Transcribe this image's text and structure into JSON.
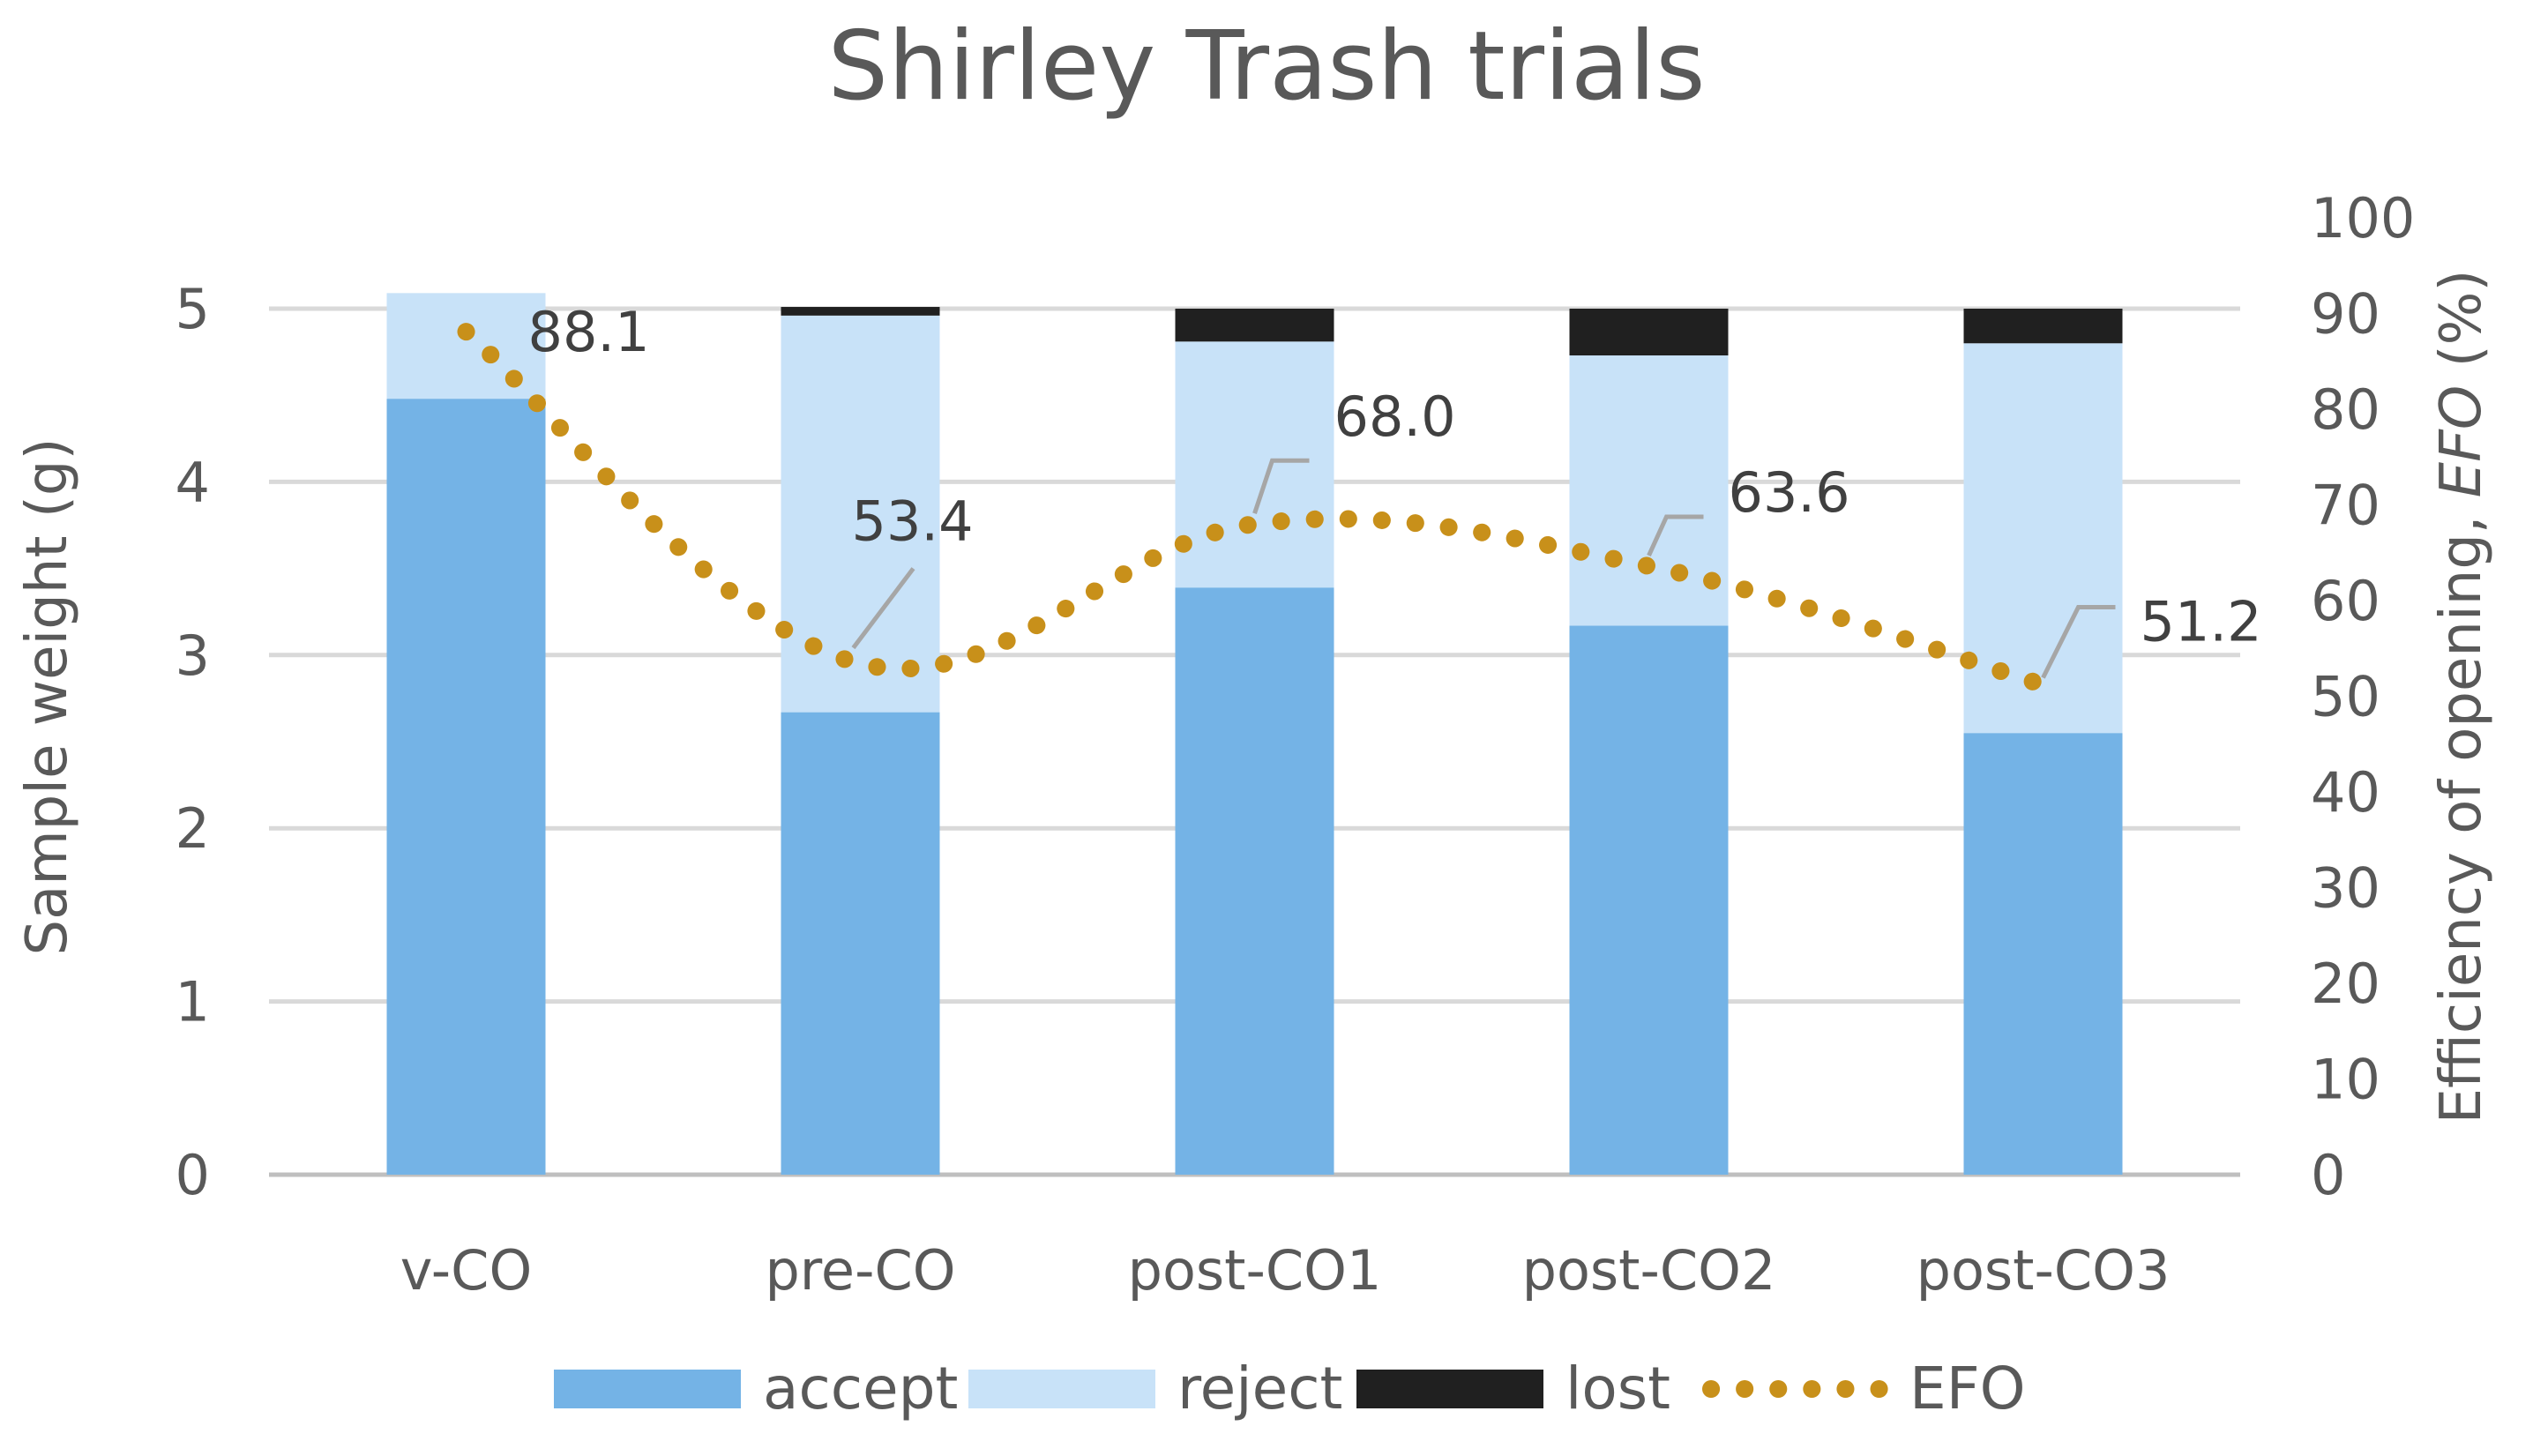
{
  "chart_data": {
    "type": "bar",
    "stacked": true,
    "title": "Shirley Trash trials",
    "categories": [
      "v-CO",
      "pre-CO",
      "post-CO1",
      "post-CO2",
      "post-CO3"
    ],
    "series": [
      {
        "name": "accept",
        "values": [
          4.48,
          2.67,
          3.39,
          3.17,
          2.55
        ],
        "color": "#74b3e6"
      },
      {
        "name": "reject",
        "values": [
          0.61,
          2.29,
          1.42,
          1.56,
          2.25
        ],
        "color": "#c8e2f8"
      },
      {
        "name": "lost",
        "values": [
          0.0,
          0.05,
          0.19,
          0.27,
          0.2
        ],
        "color": "#202020"
      }
    ],
    "line_series": {
      "name": "EFO",
      "axis": "secondary",
      "values": [
        88.1,
        53.4,
        68.0,
        63.6,
        51.2
      ],
      "labels": [
        "88.1",
        "53.4",
        "68.0",
        "63.6",
        "51.2"
      ],
      "color": "#c8901a",
      "style": "dotted"
    },
    "ylabel": "Sample weight (g)",
    "ylim": [
      0,
      5
    ],
    "yticks": [
      "0",
      "1",
      "2",
      "3",
      "4",
      "5"
    ],
    "y2label_prefix": "Efficiency of opening, ",
    "y2label_italic": "EFO",
    "y2label_suffix": " (%)",
    "y2lim": [
      0,
      100
    ],
    "y2ticks": [
      "0",
      "10",
      "20",
      "30",
      "40",
      "50",
      "60",
      "70",
      "80",
      "90",
      "100"
    ],
    "grid": true,
    "legend_position": "bottom",
    "legend": [
      "accept",
      "reject",
      "lost",
      "EFO"
    ]
  }
}
